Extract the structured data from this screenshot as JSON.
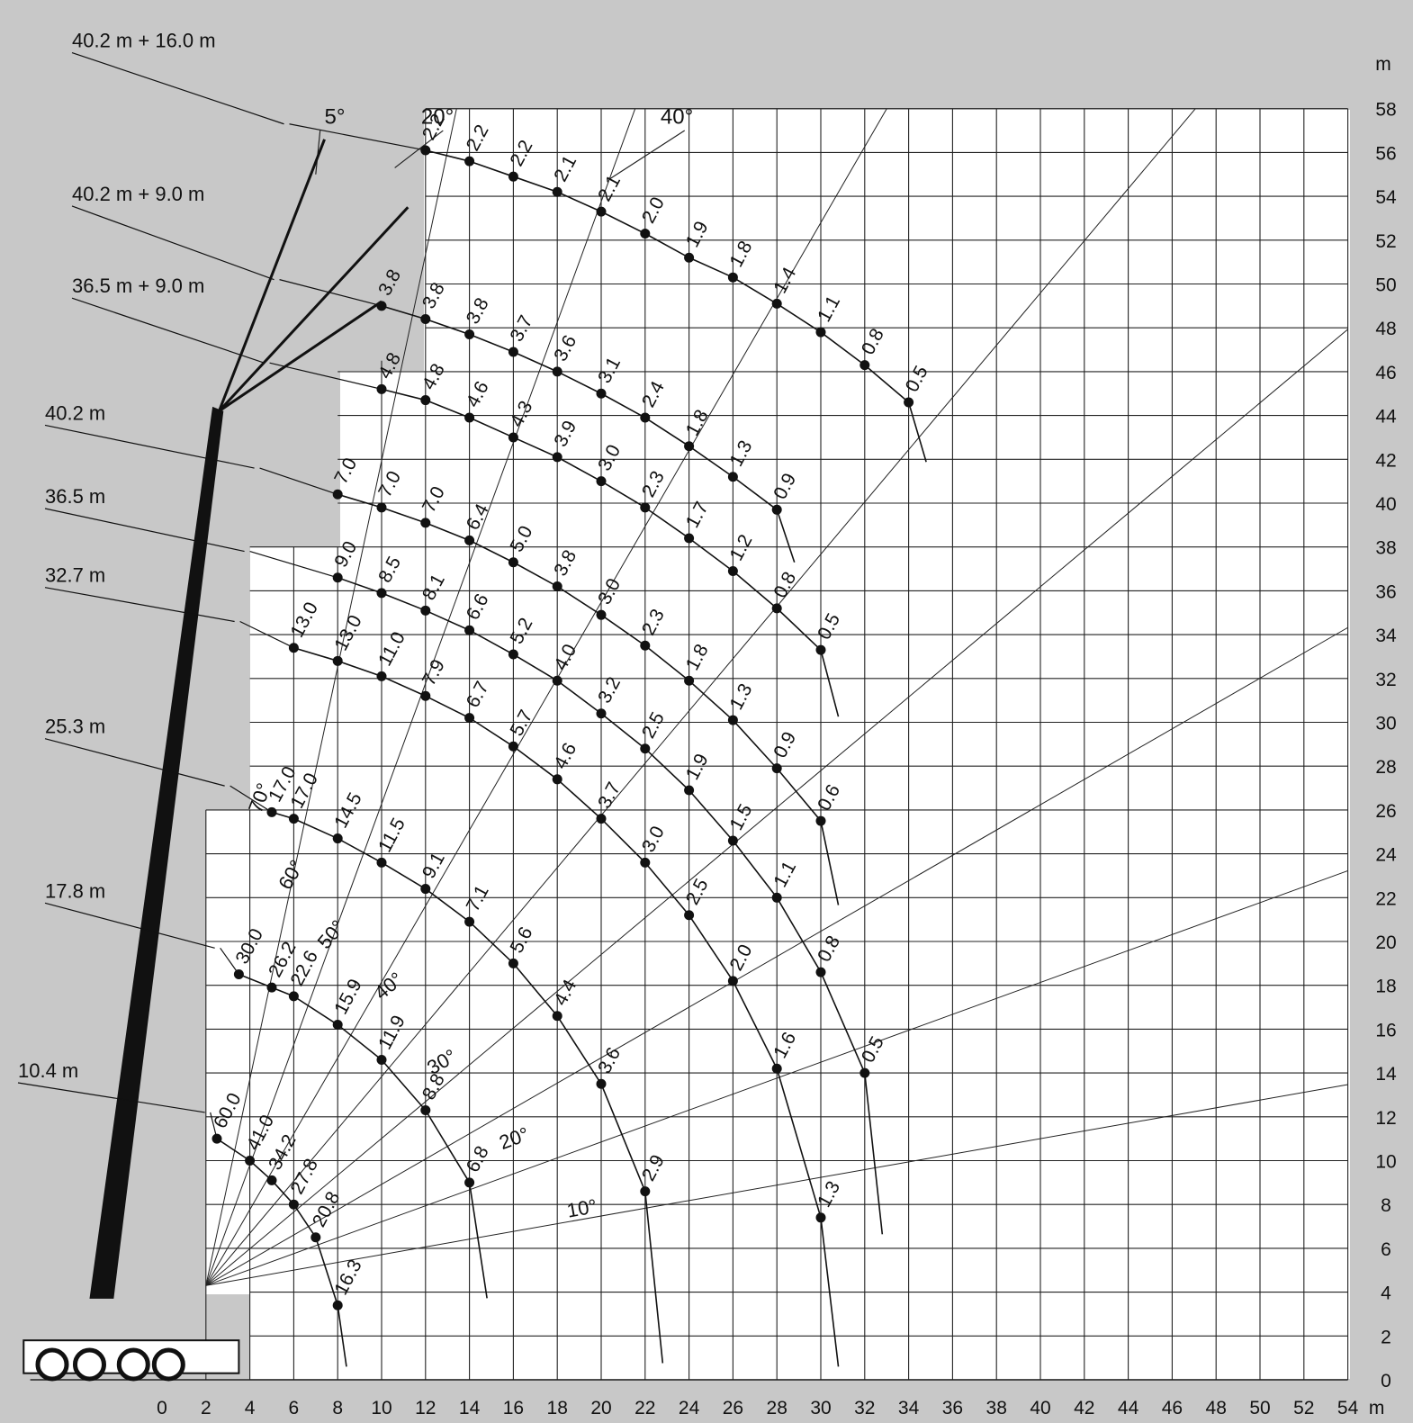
{
  "chart_data": {
    "type": "scatter",
    "title": "",
    "xlabel": "m",
    "ylabel": "m",
    "xlim": [
      0,
      54
    ],
    "ylim": [
      0,
      58
    ],
    "x_ticks": [
      "0",
      "2",
      "4",
      "6",
      "8",
      "10",
      "12",
      "14",
      "16",
      "18",
      "20",
      "22",
      "24",
      "26",
      "28",
      "30",
      "32",
      "34",
      "36",
      "38",
      "40",
      "42",
      "44",
      "46",
      "48",
      "50",
      "52",
      "54"
    ],
    "y_ticks": [
      "0",
      "2",
      "4",
      "6",
      "8",
      "10",
      "12",
      "14",
      "16",
      "18",
      "20",
      "22",
      "24",
      "26",
      "28",
      "30",
      "32",
      "34",
      "36",
      "38",
      "40",
      "42",
      "44",
      "46",
      "48",
      "50",
      "52",
      "54",
      "56",
      "58"
    ],
    "grid": true,
    "boom_angle_labels": [
      "5°",
      "20°",
      "40°"
    ],
    "radial_angle_labels": [
      "70°",
      "60°",
      "50°",
      "40°",
      "30°",
      "20°",
      "10°"
    ],
    "series": [
      {
        "name": "10.4 m",
        "x": [
          2.5,
          4,
          5,
          6,
          7,
          8
        ],
        "y": [
          11,
          10,
          9.1,
          8,
          6.5,
          3.4
        ],
        "values": [
          "60.0",
          "41.0",
          "34.2",
          "27.8",
          "20.8",
          "16.3"
        ]
      },
      {
        "name": "17.8 m",
        "x": [
          3.5,
          5,
          6,
          8,
          10,
          12,
          14
        ],
        "y": [
          18.5,
          17.9,
          17.5,
          16.2,
          14.6,
          12.3,
          9
        ],
        "values": [
          "30.0",
          "26.2",
          "22.6",
          "15.9",
          "11.9",
          "8.8",
          "6.8"
        ]
      },
      {
        "name": "25.3 m",
        "x": [
          5,
          6,
          8,
          10,
          12,
          14,
          16,
          18,
          20,
          22
        ],
        "y": [
          25.9,
          25.6,
          24.7,
          23.6,
          22.4,
          20.9,
          19,
          16.6,
          13.5,
          8.6
        ],
        "values": [
          "17.0",
          "17.0",
          "14.5",
          "11.5",
          "9.1",
          "7.1",
          "5.6",
          "4.4",
          "3.6",
          "2.9"
        ]
      },
      {
        "name": "32.7 m",
        "x": [
          6,
          8,
          10,
          12,
          14,
          16,
          18,
          20,
          22,
          24,
          26,
          28,
          30
        ],
        "y": [
          33.4,
          32.8,
          32.1,
          31.2,
          30.2,
          28.9,
          27.4,
          25.6,
          23.6,
          21.2,
          18.2,
          14.2,
          7.4
        ],
        "values": [
          "13.0",
          "13.0",
          "11.0",
          "7.9",
          "6.7",
          "5.7",
          "4.6",
          "3.7",
          "3.0",
          "2.5",
          "2.0",
          "1.6",
          "1.3"
        ]
      },
      {
        "name": "36.5 m",
        "x": [
          8,
          10,
          12,
          14,
          16,
          18,
          20,
          22,
          24,
          26,
          28,
          30,
          32
        ],
        "y": [
          36.6,
          35.9,
          35.1,
          34.2,
          33.1,
          31.9,
          30.4,
          28.8,
          26.9,
          24.6,
          22.0,
          18.6,
          14.0
        ],
        "values": [
          "9.0",
          "8.5",
          "8.1",
          "6.6",
          "5.2",
          "4.0",
          "3.2",
          "2.5",
          "1.9",
          "1.5",
          "1.1",
          "0.8",
          "0.5"
        ]
      },
      {
        "name": "40.2 m",
        "x": [
          8,
          10,
          12,
          14,
          16,
          18,
          20,
          22,
          24,
          26,
          28,
          30
        ],
        "y": [
          40.4,
          39.8,
          39.1,
          38.3,
          37.3,
          36.2,
          34.9,
          33.5,
          31.9,
          30.1,
          27.9,
          25.5
        ],
        "values": [
          "7.0",
          "7.0",
          "7.0",
          "6.4",
          "5.0",
          "3.8",
          "3.0",
          "2.3",
          "1.8",
          "1.3",
          "0.9",
          "0.6"
        ]
      },
      {
        "name": "36.5 m + 9.0 m",
        "x": [
          10,
          12,
          14,
          16,
          18,
          20,
          22,
          24,
          26,
          28,
          30
        ],
        "y": [
          45.2,
          44.7,
          43.9,
          43.0,
          42.1,
          41.0,
          39.8,
          38.4,
          36.9,
          35.2,
          33.3
        ],
        "values": [
          "4.8",
          "4.8",
          "4.6",
          "4.3",
          "3.9",
          "3.0",
          "2.3",
          "1.7",
          "1.2",
          "0.8",
          "0.5"
        ]
      },
      {
        "name": "40.2 m + 9.0 m",
        "x": [
          10,
          12,
          14,
          16,
          18,
          20,
          22,
          24,
          26,
          28
        ],
        "y": [
          49.0,
          48.4,
          47.7,
          46.9,
          46.0,
          45.0,
          43.9,
          42.6,
          41.2,
          39.7
        ],
        "values": [
          "3.8",
          "3.8",
          "3.8",
          "3.7",
          "3.6",
          "3.1",
          "2.4",
          "1.8",
          "1.3",
          "0.9"
        ]
      },
      {
        "name": "40.2 m + 16.0 m",
        "x": [
          12,
          14,
          16,
          18,
          20,
          22,
          24,
          26,
          28,
          30,
          32,
          34
        ],
        "y": [
          56.1,
          55.6,
          54.9,
          54.2,
          53.3,
          52.3,
          51.2,
          50.3,
          49.1,
          47.8,
          46.3,
          44.6
        ],
        "values": [
          "2.2",
          "2.2",
          "2.2",
          "2.1",
          "2.1",
          "2.0",
          "1.9",
          "1.8",
          "1.4",
          "1.1",
          "0.8",
          "0.5"
        ]
      }
    ]
  }
}
